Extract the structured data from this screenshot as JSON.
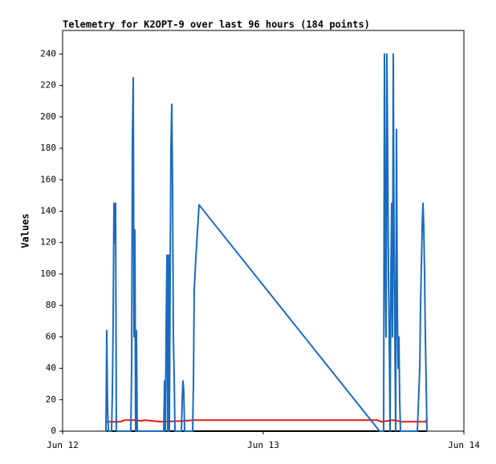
{
  "chart_data": {
    "type": "line",
    "title": "Telemetry for K2OPT-9 over last 96 hours (184 points)",
    "y_label": "Values",
    "xlim": [
      0,
      2
    ],
    "xticks": [
      {
        "value": 0,
        "label": "Jun 12"
      },
      {
        "value": 1,
        "label": "Jun 13"
      },
      {
        "value": 2,
        "label": "Jun 14"
      }
    ],
    "ylim": [
      0,
      255
    ],
    "yticks": [
      0,
      20,
      40,
      60,
      80,
      100,
      120,
      140,
      160,
      180,
      200,
      220,
      240
    ],
    "series": [
      {
        "color": "#000000",
        "x": [
          0.22,
          1.816
        ],
        "values": [
          0,
          0
        ]
      },
      {
        "color": "#e8141c",
        "x": [
          0.22,
          0.288,
          0.308,
          0.368,
          0.388,
          0.408,
          0.488,
          0.608,
          0.648,
          1.568,
          1.588,
          1.648,
          1.688,
          1.808,
          1.816
        ],
        "values": [
          6,
          6,
          7,
          7,
          6.5,
          7,
          6,
          6.5,
          7,
          7,
          6,
          7,
          6,
          6,
          7
        ]
      },
      {
        "color": "#1a6bbf",
        "x": [
          0.216,
          0.22,
          0.224,
          0.228,
          0.244,
          0.248,
          0.252,
          0.256,
          0.26,
          0.264,
          0.268,
          0.34,
          0.344,
          0.348,
          0.352,
          0.356,
          0.36,
          0.364,
          0.368,
          0.372,
          0.504,
          0.508,
          0.512,
          0.516,
          0.52,
          0.524,
          0.528,
          0.532,
          0.536,
          0.54,
          0.544,
          0.548,
          0.552,
          0.556,
          0.56,
          0.592,
          0.596,
          0.6,
          0.604,
          0.608,
          0.648,
          0.652,
          0.656,
          0.664,
          0.68,
          1.58,
          1.6,
          1.604,
          1.608,
          1.612,
          1.616,
          1.62,
          1.624,
          1.628,
          1.632,
          1.636,
          1.64,
          1.644,
          1.648,
          1.652,
          1.656,
          1.66,
          1.664,
          1.668,
          1.672,
          1.676,
          1.68,
          1.684,
          1.768,
          1.78,
          1.784,
          1.792,
          1.796,
          1.8,
          1.804,
          1.808,
          1.812,
          1.816
        ],
        "values": [
          0,
          64,
          16,
          0,
          0,
          24,
          70,
          145,
          120,
          145,
          0,
          0,
          40,
          185,
          225,
          60,
          128,
          0,
          64,
          0,
          0,
          32,
          0,
          64,
          112,
          0,
          112,
          0,
          100,
          180,
          208,
          155,
          60,
          35,
          0,
          0,
          20,
          32,
          25,
          0,
          0,
          30,
          90,
          110,
          144,
          0,
          0,
          240,
          110,
          60,
          240,
          180,
          100,
          60,
          0,
          100,
          145,
          60,
          240,
          120,
          60,
          0,
          192,
          80,
          40,
          60,
          20,
          0,
          0,
          40,
          80,
          130,
          145,
          130,
          100,
          60,
          30,
          0
        ]
      }
    ]
  }
}
